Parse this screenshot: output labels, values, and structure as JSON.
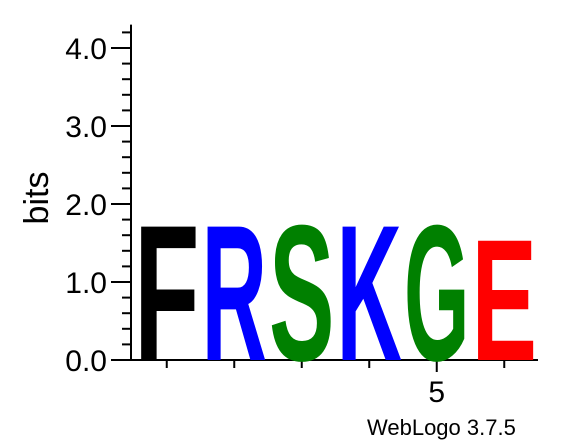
{
  "chart_data": {
    "type": "sequence-logo",
    "ylabel": "bits",
    "ylim": [
      0,
      4.3
    ],
    "yticks": [
      "0.0",
      "1.0",
      "2.0",
      "3.0",
      "4.0"
    ],
    "ytick_values": [
      0,
      1,
      2,
      3,
      4
    ],
    "xtick_labels": [
      {
        "position": 5,
        "label": "5"
      }
    ],
    "positions": [
      1,
      2,
      3,
      4,
      5,
      6
    ],
    "columns": [
      {
        "position": 1,
        "letters": [
          {
            "letter": "F",
            "bits": 1.79,
            "color": "#000000"
          }
        ]
      },
      {
        "position": 2,
        "letters": [
          {
            "letter": "R",
            "bits": 1.79,
            "color": "#0000ff"
          }
        ]
      },
      {
        "position": 3,
        "letters": [
          {
            "letter": "S",
            "bits": 1.79,
            "color": "#008000"
          }
        ]
      },
      {
        "position": 4,
        "letters": [
          {
            "letter": "K",
            "bits": 1.79,
            "color": "#0000ff"
          }
        ]
      },
      {
        "position": 5,
        "letters": [
          {
            "letter": "G",
            "bits": 1.79,
            "color": "#008000"
          }
        ]
      },
      {
        "position": 6,
        "letters": [
          {
            "letter": "E",
            "bits": 1.6,
            "color": "#ff0000"
          }
        ]
      }
    ],
    "grid": false
  },
  "footer": "WebLogo 3.7.5"
}
